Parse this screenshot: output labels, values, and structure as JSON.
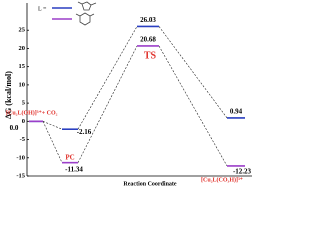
{
  "chart_data": {
    "type": "energy-profile",
    "legend_text": "L =",
    "categories": [
      "[Cu₂L(OH)]³⁺+ CO₂",
      "PC",
      "TS",
      "[Cu₂L(CO₃H)]³⁺"
    ],
    "series": [
      {
        "color": "#2a3fc0",
        "values": [
          0.0,
          -2.16,
          26.03,
          0.94
        ],
        "value_labels": [
          "0.0",
          "-2.16",
          "26.03",
          "0.94"
        ]
      },
      {
        "color": "#9b3fc9",
        "values": [
          0.0,
          -11.34,
          20.68,
          -12.23
        ],
        "value_labels": [
          null,
          "-11.34",
          "20.68",
          "-12.23"
        ]
      }
    ],
    "category_color": "#e0302a",
    "y_label": "ΔG (kcal/mol)",
    "x_label": "Reaction Coordinate",
    "ylim": [
      -15,
      30
    ],
    "yticks": [
      -15,
      -10,
      -5,
      0,
      5,
      10,
      15,
      20,
      25
    ]
  }
}
